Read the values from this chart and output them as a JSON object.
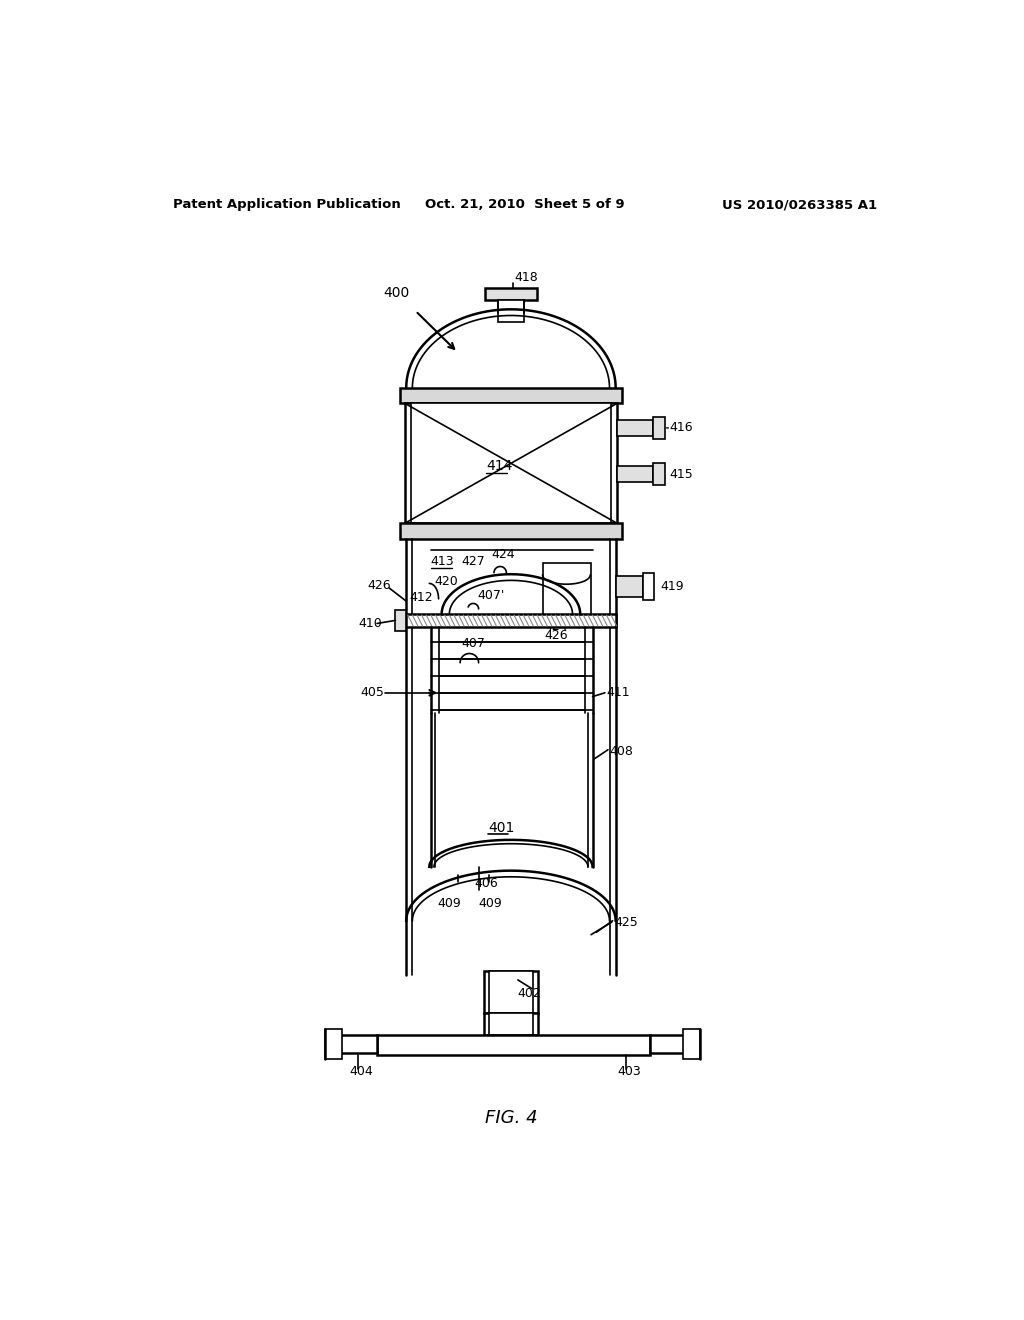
{
  "header_left": "Patent Application Publication",
  "header_center": "Oct. 21, 2010  Sheet 5 of 9",
  "header_right": "US 2010/0263385 A1",
  "bg_color": "#ffffff",
  "line_color": "#000000",
  "fig_caption": "FIG. 4"
}
